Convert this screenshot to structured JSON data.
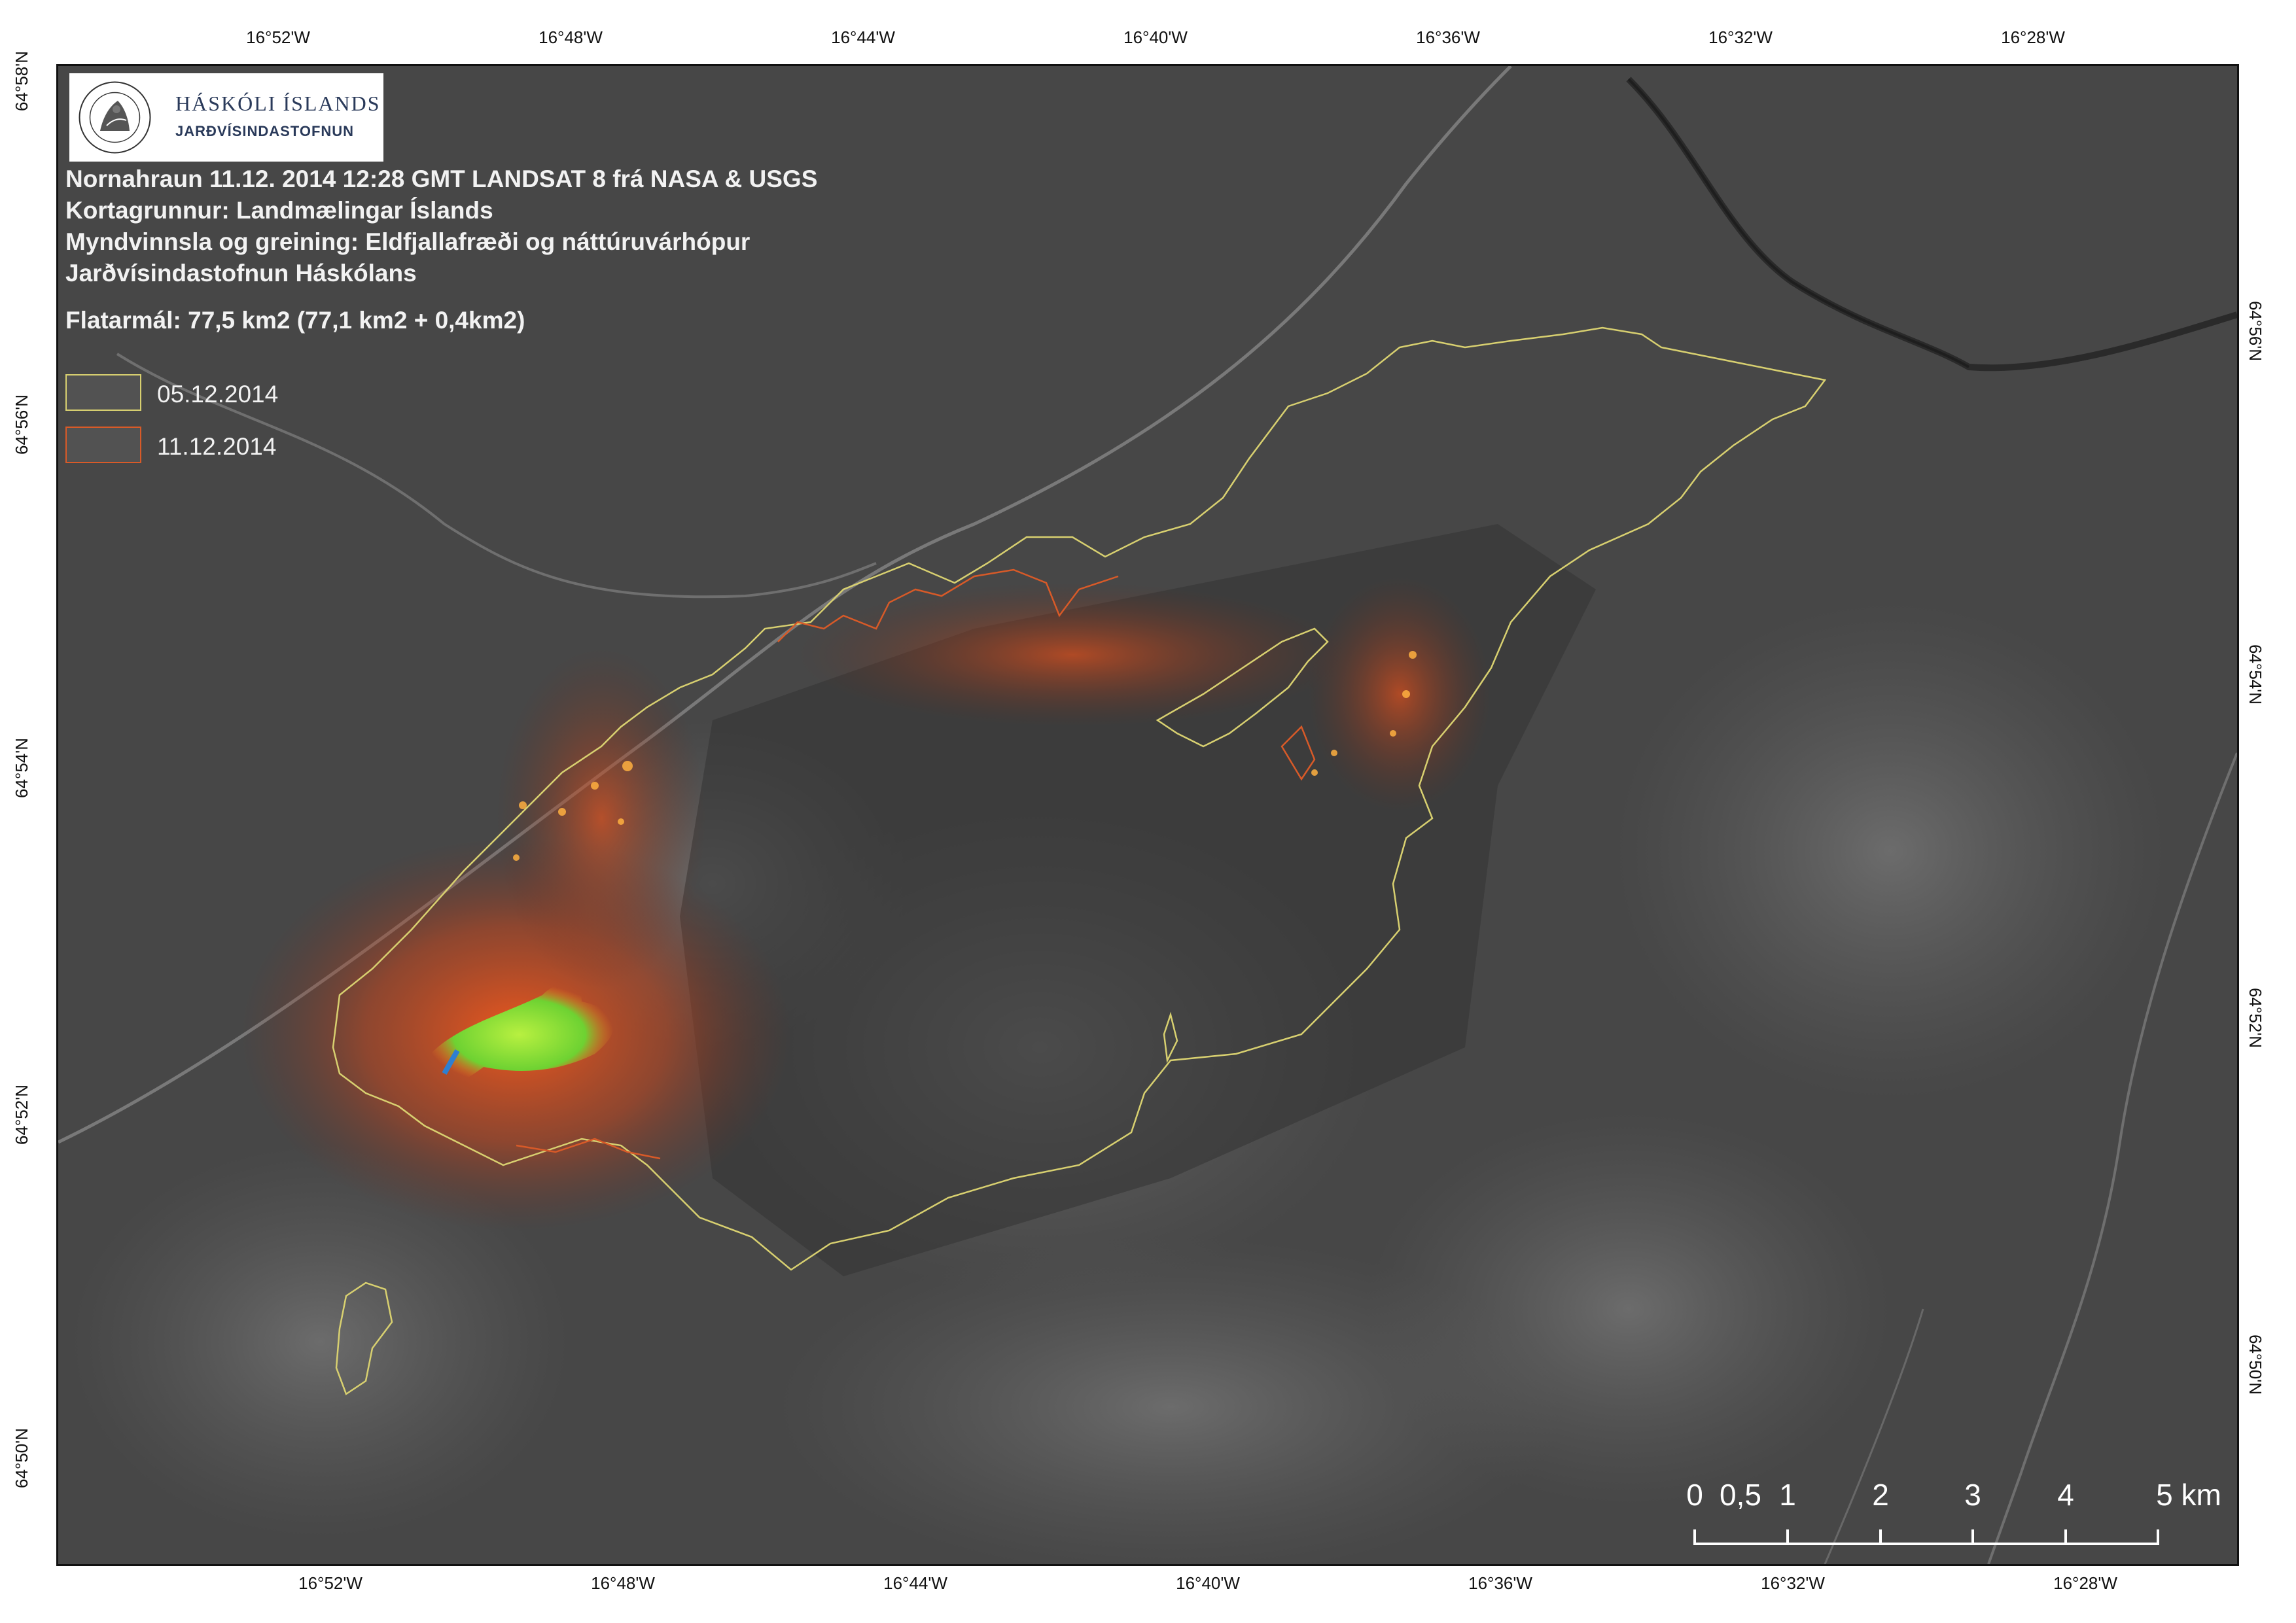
{
  "map": {
    "top_longitude_ticks": [
      "16°52'W",
      "16°48'W",
      "16°44'W",
      "16°40'W",
      "16°36'W",
      "16°32'W",
      "16°28'W"
    ],
    "bottom_longitude_ticks": [
      "16°52'W",
      "16°48'W",
      "16°44'W",
      "16°40'W",
      "16°36'W",
      "16°32'W",
      "16°28'W"
    ],
    "left_latitude_ticks": [
      "64°58'N",
      "64°56'N",
      "64°54'N",
      "64°52'N",
      "64°50'N"
    ],
    "right_latitude_ticks": [
      "64°56'N",
      "64°54'N",
      "64°52'N",
      "64°50'N"
    ]
  },
  "logo": {
    "name_line1": "HÁSKÓLI ÍSLANDS",
    "name_line2": "JARÐVÍSINDASTOFNUN",
    "seal_text": "UNIVERSITATIS ISLANDIAE · SIGILLUM"
  },
  "info": {
    "line1": "Nornahraun 11.12. 2014  12:28 GMT LANDSAT 8 frá NASA & USGS",
    "line2": "Kortagrunnur: Landmælingar Íslands",
    "line3": "Myndvinnsla og greining: Eldfjallafræði og náttúruvárhópur",
    "line4": "Jarðvísindastofnun Háskólans",
    "area": "Flatarmál: 77,5 km2   (77,1 km2 + 0,4km2)"
  },
  "legend": [
    {
      "label": "05.12.2014",
      "color": "#d8d070"
    },
    {
      "label": "11.12.2014",
      "color": "#d85a28"
    }
  ],
  "scale_bar": {
    "labels": [
      "0",
      "0,5",
      "1",
      "2",
      "3",
      "4",
      "5 km"
    ],
    "values_km": [
      0,
      0.5,
      1,
      2,
      3,
      4,
      5
    ]
  },
  "colors": {
    "outline_0512": "#d8d070",
    "outline_1112": "#d85a28",
    "hot_lava": "#ff6a20",
    "vent": "#7ee03a"
  }
}
